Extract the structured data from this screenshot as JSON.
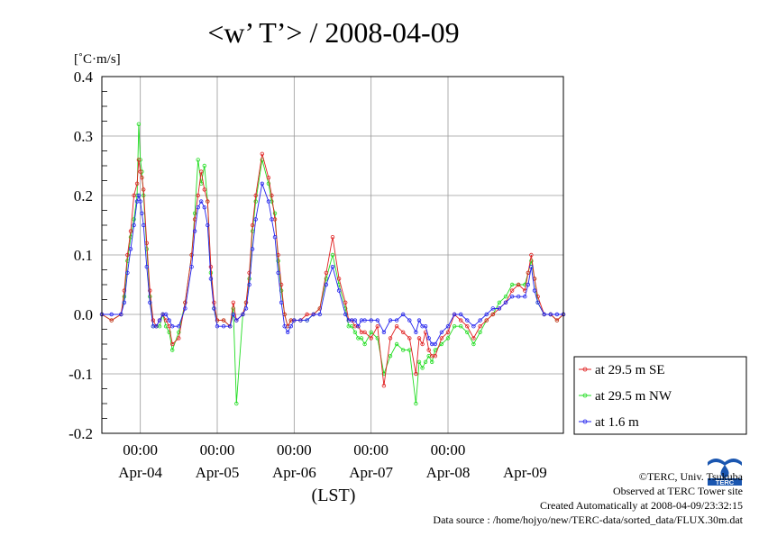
{
  "chart_data": {
    "type": "line",
    "title": "<w’ T’> / 2008-04-09",
    "ylabel": "[˚C·m/s]",
    "xlabel": "(LST)",
    "ylim": [
      -0.2,
      0.4
    ],
    "yticks": [
      -0.2,
      -0.1,
      0.0,
      0.1,
      0.2,
      0.3,
      0.4
    ],
    "yticklabels": [
      "-0.2",
      "-0.1",
      "0.0",
      "0.1",
      "0.2",
      "0.3",
      "0.4"
    ],
    "xlim": [
      0,
      144
    ],
    "xunit": "hours since Apr-03 12:00 LST",
    "xticks": [
      12,
      36,
      60,
      84,
      108
    ],
    "xtick_time_labels": [
      "00:00",
      "00:00",
      "00:00",
      "00:00",
      "00:00"
    ],
    "xtick_date_labels": [
      "Apr-04",
      "Apr-05",
      "Apr-06",
      "Apr-07",
      "Apr-08",
      "Apr-09"
    ],
    "xtick_date_positions": [
      12,
      36,
      60,
      84,
      108,
      132
    ],
    "grid": true,
    "legend_position": "lower-right outside",
    "series": [
      {
        "name": "at 29.5 m SE",
        "color": "#e02020",
        "x": [
          0,
          3,
          6,
          7,
          8,
          9,
          10,
          11,
          11.5,
          12,
          12.5,
          13,
          14,
          15,
          16,
          17,
          18,
          19,
          20,
          21,
          22,
          24,
          26,
          28,
          29,
          30,
          31,
          32,
          33,
          34,
          35,
          36,
          38,
          40,
          41,
          42,
          44,
          45,
          46,
          47,
          48,
          50,
          52,
          53,
          54,
          55,
          56,
          57,
          58,
          59,
          60,
          62,
          64,
          66,
          68,
          70,
          72,
          74,
          76,
          77,
          78,
          79,
          80,
          81,
          82,
          84,
          86,
          88,
          90,
          92,
          94,
          96,
          98,
          99,
          100,
          101,
          102,
          103,
          104,
          106,
          108,
          110,
          112,
          114,
          116,
          118,
          120,
          122,
          124,
          126,
          128,
          130,
          132,
          133,
          134,
          135,
          136,
          138,
          140,
          142,
          144
        ],
        "y": [
          0.0,
          -0.01,
          0.0,
          0.04,
          0.1,
          0.14,
          0.2,
          0.22,
          0.26,
          0.24,
          0.23,
          0.21,
          0.12,
          0.04,
          -0.01,
          -0.02,
          -0.01,
          0.0,
          -0.01,
          -0.02,
          -0.05,
          -0.04,
          0.02,
          0.1,
          0.16,
          0.2,
          0.24,
          0.21,
          0.19,
          0.08,
          0.02,
          -0.01,
          -0.01,
          -0.02,
          0.02,
          -0.01,
          0.0,
          0.02,
          0.07,
          0.15,
          0.2,
          0.27,
          0.23,
          0.2,
          0.16,
          0.1,
          0.05,
          0.0,
          -0.02,
          -0.01,
          -0.01,
          -0.01,
          0.0,
          0.0,
          0.01,
          0.07,
          0.13,
          0.06,
          0.02,
          -0.01,
          -0.01,
          -0.02,
          -0.02,
          -0.03,
          -0.03,
          -0.04,
          -0.02,
          -0.12,
          -0.04,
          -0.02,
          -0.03,
          -0.04,
          -0.1,
          -0.04,
          -0.05,
          -0.03,
          -0.06,
          -0.07,
          -0.07,
          -0.04,
          -0.03,
          0.0,
          -0.01,
          -0.02,
          -0.04,
          -0.02,
          -0.01,
          0.0,
          0.01,
          0.02,
          0.04,
          0.05,
          0.04,
          0.07,
          0.1,
          0.06,
          0.03,
          0.0,
          0.0,
          -0.01,
          0.0
        ]
      },
      {
        "name": "at 29.5 m NW",
        "color": "#22dd22",
        "x": [
          0,
          3,
          6,
          7,
          8,
          9,
          10,
          11,
          11.5,
          12,
          12.5,
          13,
          14,
          15,
          16,
          17,
          18,
          19,
          20,
          21,
          22,
          24,
          26,
          28,
          29,
          30,
          31,
          32,
          33,
          34,
          35,
          36,
          38,
          40,
          41,
          42,
          44,
          45,
          46,
          47,
          48,
          50,
          52,
          53,
          54,
          55,
          56,
          57,
          58,
          59,
          60,
          62,
          64,
          66,
          68,
          70,
          72,
          74,
          76,
          77,
          78,
          79,
          80,
          81,
          82,
          84,
          86,
          88,
          90,
          92,
          94,
          96,
          98,
          99,
          100,
          101,
          102,
          103,
          104,
          106,
          108,
          110,
          112,
          114,
          116,
          118,
          120,
          122,
          124,
          126,
          128,
          130,
          132,
          133,
          134,
          135,
          136,
          138,
          140,
          142,
          144
        ],
        "y": [
          0.0,
          -0.01,
          0.0,
          0.03,
          0.09,
          0.13,
          0.16,
          0.2,
          0.32,
          0.26,
          0.24,
          0.2,
          0.11,
          0.03,
          -0.02,
          -0.02,
          -0.02,
          0.0,
          -0.02,
          -0.03,
          -0.06,
          -0.03,
          0.02,
          0.1,
          0.17,
          0.26,
          0.22,
          0.25,
          0.19,
          0.07,
          0.01,
          -0.01,
          -0.01,
          -0.02,
          0.01,
          -0.15,
          0.0,
          0.02,
          0.06,
          0.14,
          0.19,
          0.26,
          0.22,
          0.19,
          0.17,
          0.09,
          0.04,
          0.0,
          -0.02,
          -0.01,
          -0.01,
          -0.01,
          -0.01,
          0.0,
          0.01,
          0.06,
          0.1,
          0.05,
          0.01,
          -0.02,
          -0.02,
          -0.03,
          -0.04,
          -0.04,
          -0.05,
          -0.03,
          -0.04,
          -0.1,
          -0.07,
          -0.05,
          -0.06,
          -0.06,
          -0.15,
          -0.08,
          -0.09,
          -0.08,
          -0.07,
          -0.08,
          -0.06,
          -0.05,
          -0.04,
          -0.02,
          -0.02,
          -0.03,
          -0.05,
          -0.03,
          -0.01,
          0.0,
          0.02,
          0.03,
          0.05,
          0.05,
          0.05,
          0.07,
          0.09,
          0.06,
          0.02,
          0.0,
          0.0,
          -0.01,
          0.0
        ]
      },
      {
        "name": "at 1.6 m",
        "color": "#2222ee",
        "x": [
          0,
          3,
          6,
          7,
          8,
          9,
          10,
          11,
          11.5,
          12,
          12.5,
          13,
          14,
          15,
          16,
          17,
          18,
          19,
          20,
          21,
          22,
          24,
          26,
          28,
          29,
          30,
          31,
          32,
          33,
          34,
          35,
          36,
          38,
          40,
          41,
          42,
          44,
          45,
          46,
          47,
          48,
          50,
          52,
          53,
          54,
          55,
          56,
          57,
          58,
          59,
          60,
          62,
          64,
          66,
          68,
          70,
          72,
          74,
          76,
          77,
          78,
          79,
          80,
          81,
          82,
          84,
          86,
          88,
          90,
          92,
          94,
          96,
          98,
          99,
          100,
          101,
          102,
          103,
          104,
          106,
          108,
          110,
          112,
          114,
          116,
          118,
          120,
          122,
          124,
          126,
          128,
          130,
          132,
          133,
          134,
          135,
          136,
          138,
          140,
          142,
          144
        ],
        "y": [
          0.0,
          0.0,
          0.0,
          0.02,
          0.07,
          0.11,
          0.15,
          0.19,
          0.2,
          0.19,
          0.17,
          0.15,
          0.08,
          0.02,
          -0.02,
          -0.02,
          -0.01,
          0.0,
          0.0,
          -0.01,
          -0.02,
          -0.02,
          0.01,
          0.08,
          0.14,
          0.18,
          0.19,
          0.18,
          0.15,
          0.06,
          0.01,
          -0.02,
          -0.02,
          -0.02,
          0.0,
          -0.01,
          0.0,
          0.01,
          0.05,
          0.11,
          0.16,
          0.22,
          0.19,
          0.16,
          0.13,
          0.07,
          0.02,
          -0.02,
          -0.03,
          -0.02,
          -0.01,
          -0.01,
          -0.01,
          0.0,
          0.0,
          0.05,
          0.08,
          0.04,
          0.0,
          -0.01,
          -0.01,
          -0.01,
          -0.02,
          -0.01,
          -0.01,
          -0.01,
          -0.01,
          -0.03,
          -0.01,
          -0.01,
          0.0,
          -0.01,
          -0.03,
          -0.01,
          -0.02,
          -0.02,
          -0.04,
          -0.05,
          -0.05,
          -0.03,
          -0.02,
          0.0,
          0.0,
          -0.01,
          -0.02,
          -0.01,
          0.0,
          0.01,
          0.01,
          0.02,
          0.03,
          0.03,
          0.03,
          0.05,
          0.08,
          0.04,
          0.02,
          0.0,
          0.0,
          0.0,
          0.0
        ]
      }
    ]
  },
  "credits": {
    "copyright": "©TERC, Univ. Tsukuba",
    "observed": "Observed at TERC Tower site",
    "created": "Created Automatically at 2008-04-09/23:32:15",
    "source": "Data source : /home/hojyo/new/TERC-data/sorted_data/FLUX.30m.dat",
    "logo_text": "TERC"
  }
}
